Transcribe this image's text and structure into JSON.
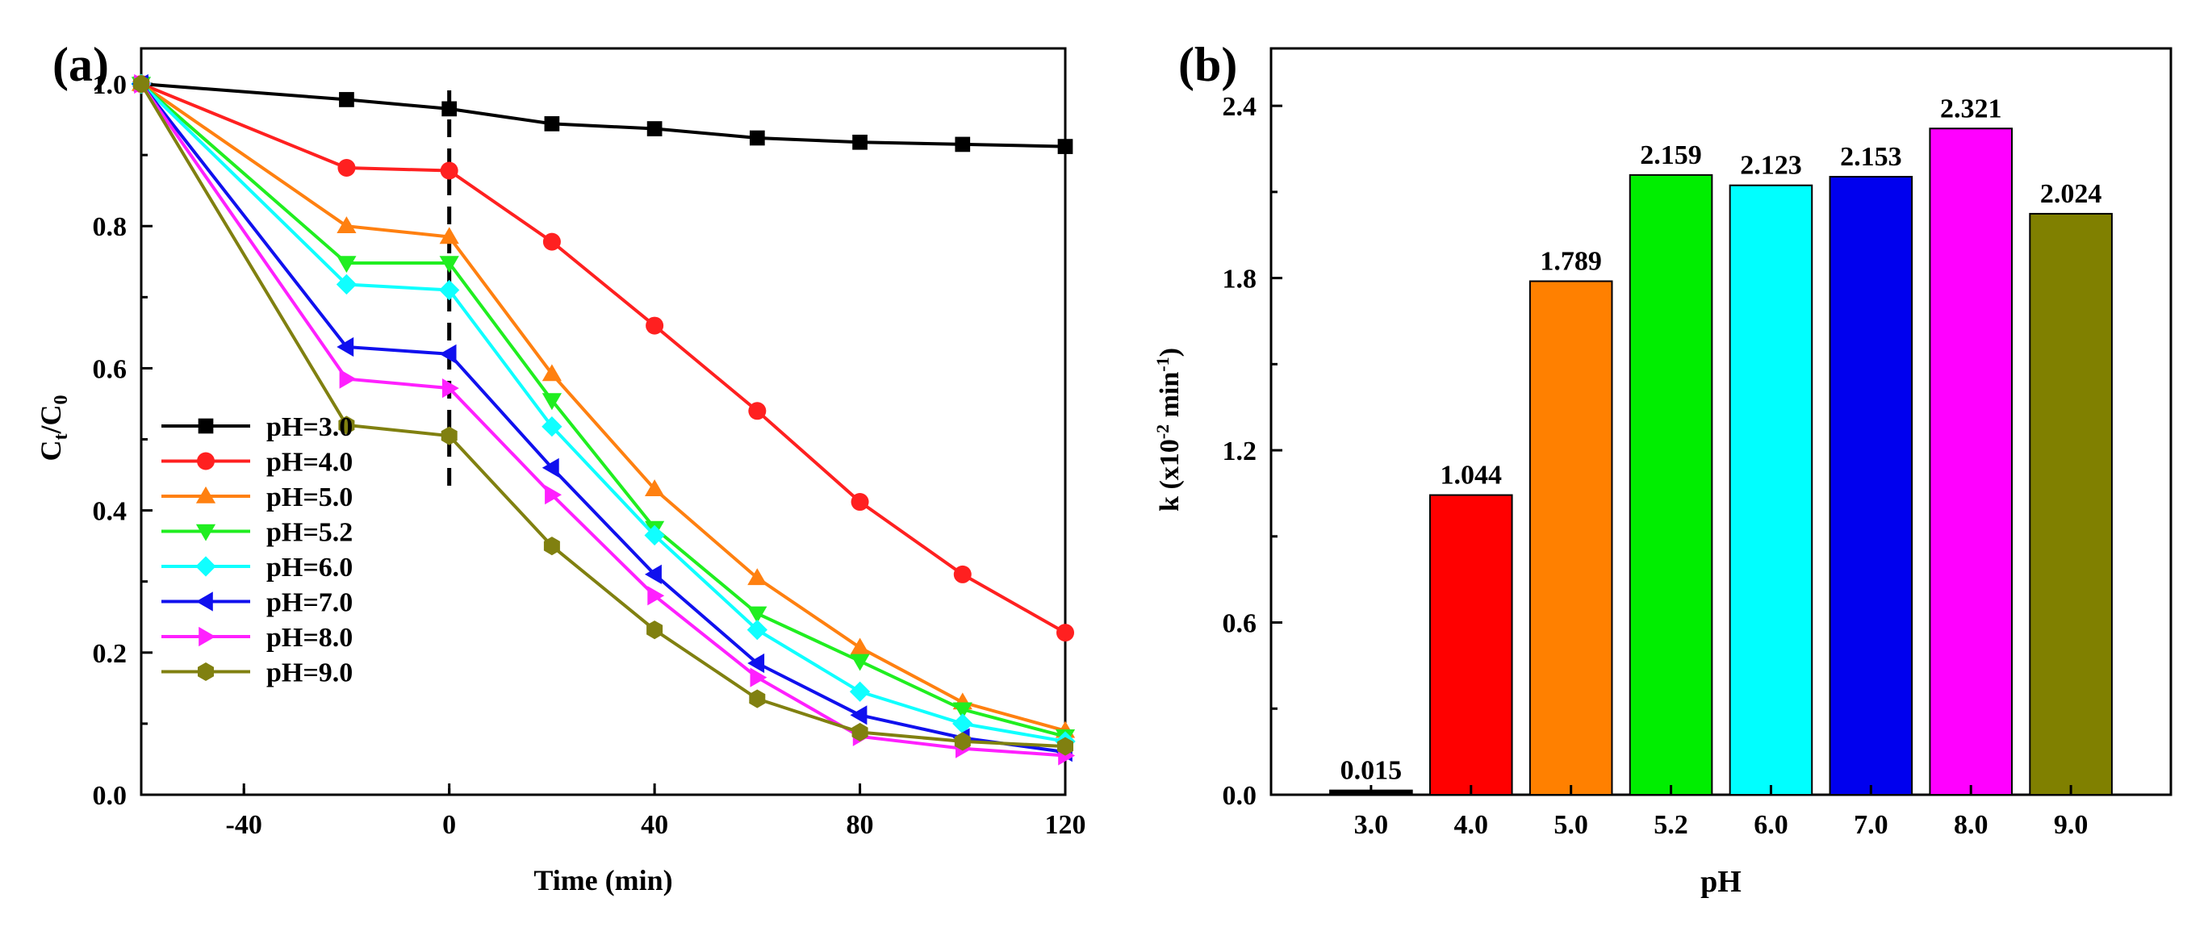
{
  "chart_data": [
    {
      "panel_label": "(a)",
      "type": "line",
      "xlabel": "Time (min)",
      "ylabel_main": "C",
      "ylabel_sub1": "t",
      "ylabel_mid": "/C",
      "ylabel_sub2": "0",
      "xlim": [
        -60,
        120
      ],
      "ylim": [
        0.0,
        1.05
      ],
      "xticks": [
        -40,
        0,
        40,
        80,
        120
      ],
      "xtick_labels": [
        "-40",
        "0",
        "40",
        "80",
        "120"
      ],
      "yticks": [
        0.0,
        0.2,
        0.4,
        0.6,
        0.8,
        1.0
      ],
      "ytick_labels": [
        "0.0",
        "0.2",
        "0.4",
        "0.6",
        "0.8",
        "1.0"
      ],
      "x": [
        -60,
        -20,
        0,
        20,
        40,
        60,
        80,
        100,
        120
      ],
      "vline_x": 0,
      "legend_position": "bottom-left",
      "series": [
        {
          "name": "pH=3.0",
          "color": "#000000",
          "marker": "square",
          "values": [
            1.0,
            0.978,
            0.965,
            0.944,
            0.937,
            0.924,
            0.918,
            0.915,
            0.912
          ]
        },
        {
          "name": "pH=4.0",
          "color": "#ff2020",
          "marker": "circle",
          "values": [
            1.0,
            0.882,
            0.878,
            0.778,
            0.66,
            0.54,
            0.412,
            0.31,
            0.228
          ]
        },
        {
          "name": "pH=5.0",
          "color": "#ff8010",
          "marker": "triangle-up",
          "values": [
            1.0,
            0.8,
            0.785,
            0.592,
            0.43,
            0.305,
            0.207,
            0.13,
            0.09
          ]
        },
        {
          "name": "pH=5.2",
          "color": "#20ee20",
          "marker": "triangle-down",
          "values": [
            1.0,
            0.748,
            0.748,
            0.555,
            0.375,
            0.255,
            0.188,
            0.12,
            0.082
          ]
        },
        {
          "name": "pH=6.0",
          "color": "#10ffff",
          "marker": "diamond",
          "values": [
            1.0,
            0.718,
            0.71,
            0.518,
            0.365,
            0.232,
            0.145,
            0.1,
            0.075
          ]
        },
        {
          "name": "pH=7.0",
          "color": "#1010ee",
          "marker": "triangle-left",
          "values": [
            1.0,
            0.63,
            0.62,
            0.46,
            0.31,
            0.185,
            0.112,
            0.08,
            0.06
          ]
        },
        {
          "name": "pH=8.0",
          "color": "#ff20ff",
          "marker": "triangle-right",
          "values": [
            1.0,
            0.585,
            0.572,
            0.422,
            0.28,
            0.165,
            0.082,
            0.065,
            0.055
          ]
        },
        {
          "name": "pH=9.0",
          "color": "#808010",
          "marker": "hexagon",
          "values": [
            1.0,
            0.52,
            0.505,
            0.35,
            0.232,
            0.135,
            0.088,
            0.075,
            0.068
          ]
        }
      ]
    },
    {
      "panel_label": "(b)",
      "type": "bar",
      "xlabel": "pH",
      "ylabel_main": "k (x10",
      "ylabel_exp1": "-2",
      "ylabel_mid": " min",
      "ylabel_exp2": "-1",
      "ylabel_end": ")",
      "ylim": [
        0.0,
        2.6
      ],
      "yticks": [
        0.0,
        0.6,
        1.2,
        1.8,
        2.4
      ],
      "ytick_labels": [
        "0.0",
        "0.6",
        "1.2",
        "1.8",
        "2.4"
      ],
      "categories": [
        "3.0",
        "4.0",
        "5.0",
        "5.2",
        "6.0",
        "7.0",
        "8.0",
        "9.0"
      ],
      "values": [
        0.015,
        1.044,
        1.789,
        2.159,
        2.123,
        2.153,
        2.321,
        2.024
      ],
      "value_labels": [
        "0.015",
        "1.044",
        "1.789",
        "2.159",
        "2.123",
        "2.153",
        "2.321",
        "2.024"
      ],
      "colors": [
        "#000000",
        "#ff0000",
        "#ff8000",
        "#00ee00",
        "#00ffff",
        "#0000ee",
        "#ff00ff",
        "#808000"
      ]
    }
  ]
}
